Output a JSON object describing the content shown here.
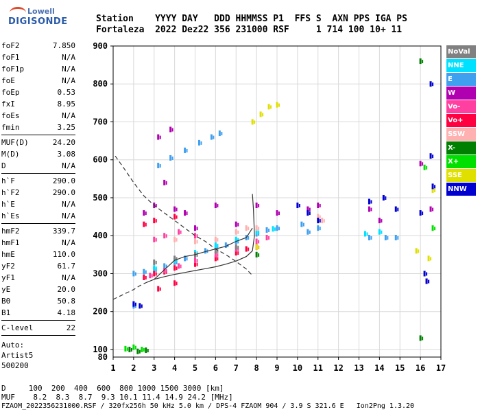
{
  "logo": {
    "line1": "Lowell",
    "line2": "DIGISONDE"
  },
  "header": {
    "labels": "Station    YYYY DAY   DDD HHMMSS P1  FFS S  AXN PPS IGA PS",
    "values": "Fortaleza  2022 Dez22 356 231000 RSF     1 714 100 10+ 11"
  },
  "params": {
    "group1": [
      {
        "k": "foF2",
        "v": "7.850"
      },
      {
        "k": "foF1",
        "v": "N/A"
      },
      {
        "k": "foF1p",
        "v": "N/A"
      },
      {
        "k": "foE",
        "v": "N/A"
      },
      {
        "k": "foEp",
        "v": "0.53"
      },
      {
        "k": "fxI",
        "v": "8.95"
      },
      {
        "k": "foEs",
        "v": "N/A"
      },
      {
        "k": "fmin",
        "v": "3.25"
      }
    ],
    "group2": [
      {
        "k": "MUF(D)",
        "v": "24.20"
      },
      {
        "k": "M(D)",
        "v": "3.08"
      },
      {
        "k": "D",
        "v": "N/A"
      }
    ],
    "group3": [
      {
        "k": "h`F",
        "v": "290.0"
      },
      {
        "k": "h`F2",
        "v": "290.0"
      },
      {
        "k": "h`E",
        "v": "N/A"
      },
      {
        "k": "h`Es",
        "v": "N/A"
      }
    ],
    "group4": [
      {
        "k": "hmF2",
        "v": "339.7"
      },
      {
        "k": "hmF1",
        "v": "N/A"
      },
      {
        "k": "hmE",
        "v": "110.0"
      },
      {
        "k": "yF2",
        "v": "61.7"
      },
      {
        "k": "yF1",
        "v": "N/A"
      },
      {
        "k": "yE",
        "v": "20.0"
      },
      {
        "k": "B0",
        "v": "50.8"
      },
      {
        "k": "B1",
        "v": "4.18"
      }
    ],
    "group5": [
      {
        "k": "C-level",
        "v": "22"
      }
    ],
    "auto": [
      "Auto:",
      "Artist5",
      "500200"
    ]
  },
  "legend": [
    {
      "label": "NoVal",
      "color": "#808080"
    },
    {
      "label": "NNE",
      "color": "#00e0ff"
    },
    {
      "label": "E",
      "color": "#40a0f0"
    },
    {
      "label": "W",
      "color": "#b000b0"
    },
    {
      "label": "Vo-",
      "color": "#ff40a0"
    },
    {
      "label": "Vo+",
      "color": "#ff0040"
    },
    {
      "label": "SSW",
      "color": "#ffb0b0"
    },
    {
      "label": "X-",
      "color": "#008000"
    },
    {
      "label": "X+",
      "color": "#00e000"
    },
    {
      "label": "SSE",
      "color": "#e0e000"
    },
    {
      "label": "NNW",
      "color": "#0000d0"
    }
  ],
  "footer": {
    "d_row": "D     100  200  400  600  800 1000 1500 3000 [km]",
    "muf_row": "MUF    8.2  8.3  8.7  9.3 10.1 11.4 14.9 24.2 [MHz]",
    "file_row": "FZAOM_2022356231000.RSF / 320fx256h 50 kHz 5.0 km / DPS-4 FZAOM 904 / 3.9 S 321.6 E   Ion2Png 1.3.20"
  },
  "chart_data": {
    "type": "scatter",
    "xlim": [
      1,
      17
    ],
    "ylim": [
      80,
      900
    ],
    "x_ticks": [
      "1",
      "2",
      "3",
      "4",
      "5",
      "6",
      "7",
      "8",
      "9",
      "10",
      "11",
      "12",
      "13",
      "14",
      "15",
      "16",
      "17"
    ],
    "y_ticks": [
      "100",
      "200",
      "300",
      "400",
      "500",
      "600",
      "700",
      "800",
      "900"
    ],
    "grid": true,
    "series": [
      {
        "color": "#40a0f0",
        "points": [
          [
            2.0,
            300
          ],
          [
            2.5,
            305
          ],
          [
            3,
            310
          ],
          [
            3.5,
            320
          ],
          [
            4,
            330
          ],
          [
            4.5,
            340
          ],
          [
            5,
            350
          ],
          [
            5.5,
            360
          ],
          [
            6,
            370
          ],
          [
            6.5,
            375
          ],
          [
            7,
            385
          ],
          [
            7.5,
            395
          ],
          [
            8,
            405
          ],
          [
            8.5,
            415
          ],
          [
            9,
            420
          ],
          [
            3.2,
            585
          ],
          [
            3.8,
            605
          ],
          [
            4.5,
            625
          ],
          [
            5.2,
            645
          ],
          [
            5.8,
            660
          ],
          [
            6.2,
            670
          ],
          [
            13.5,
            395
          ],
          [
            14.3,
            395
          ],
          [
            14.8,
            395
          ],
          [
            10.2,
            430
          ],
          [
            10.5,
            410
          ],
          [
            11,
            420
          ],
          [
            2.0,
            215
          ]
        ]
      },
      {
        "color": "#00e0ff",
        "points": [
          [
            3,
            315
          ],
          [
            4,
            335
          ],
          [
            5,
            355
          ],
          [
            6,
            375
          ],
          [
            7,
            390
          ],
          [
            8,
            410
          ],
          [
            8.8,
            418
          ],
          [
            13.3,
            405
          ],
          [
            14,
            410
          ]
        ]
      },
      {
        "color": "#ff0040",
        "points": [
          [
            2.5,
            290
          ],
          [
            3,
            300
          ],
          [
            3.5,
            305
          ],
          [
            4,
            315
          ],
          [
            5,
            325
          ],
          [
            6,
            340
          ],
          [
            7,
            355
          ],
          [
            7.5,
            365
          ],
          [
            8,
            370
          ],
          [
            2.5,
            430
          ],
          [
            3,
            440
          ],
          [
            4,
            450
          ],
          [
            3.2,
            260
          ],
          [
            4,
            275
          ]
        ]
      },
      {
        "color": "#ff40a0",
        "points": [
          [
            2.8,
            295
          ],
          [
            3.5,
            308
          ],
          [
            4.2,
            320
          ],
          [
            5,
            335
          ],
          [
            6,
            350
          ],
          [
            7,
            365
          ],
          [
            8,
            385
          ],
          [
            8.5,
            395
          ],
          [
            3,
            390
          ],
          [
            3.5,
            400
          ],
          [
            4.2,
            410
          ],
          [
            5,
            400
          ]
        ]
      },
      {
        "color": "#b000b0",
        "points": [
          [
            2.5,
            460
          ],
          [
            3,
            480
          ],
          [
            3.5,
            540
          ],
          [
            4,
            470
          ],
          [
            4.5,
            460
          ],
          [
            5,
            420
          ],
          [
            6,
            480
          ],
          [
            7,
            430
          ],
          [
            3.2,
            660
          ],
          [
            3.8,
            680
          ],
          [
            8,
            480
          ],
          [
            9,
            460
          ],
          [
            10.5,
            470
          ],
          [
            11,
            480
          ],
          [
            13.5,
            470
          ],
          [
            14,
            440
          ],
          [
            16.5,
            470
          ],
          [
            16.3,
            280
          ],
          [
            16,
            590
          ]
        ]
      },
      {
        "color": "#ffb0b0",
        "points": [
          [
            4,
            390
          ],
          [
            5,
            385
          ],
          [
            6,
            390
          ],
          [
            7,
            410
          ],
          [
            7.5,
            420
          ],
          [
            8,
            420
          ],
          [
            11,
            450
          ],
          [
            11.2,
            440
          ]
        ]
      },
      {
        "color": "#e0e000",
        "points": [
          [
            7.8,
            700
          ],
          [
            8.2,
            720
          ],
          [
            8.6,
            740
          ],
          [
            9,
            745
          ],
          [
            8,
            370
          ],
          [
            16.6,
            520
          ],
          [
            16.4,
            340
          ],
          [
            15.8,
            360
          ]
        ]
      },
      {
        "color": "#0000d0",
        "points": [
          [
            2.0,
            220
          ],
          [
            2.3,
            215
          ],
          [
            10,
            480
          ],
          [
            10.5,
            460
          ],
          [
            11,
            440
          ],
          [
            13.5,
            490
          ],
          [
            14.2,
            500
          ],
          [
            14.8,
            470
          ],
          [
            16.5,
            800
          ],
          [
            16.2,
            300
          ],
          [
            16.6,
            530
          ],
          [
            16,
            460
          ],
          [
            16.5,
            610
          ],
          [
            16.3,
            280
          ]
        ]
      },
      {
        "color": "#008000",
        "points": [
          [
            1.8,
            100
          ],
          [
            2.2,
            95
          ],
          [
            2.6,
            98
          ],
          [
            8,
            350
          ],
          [
            16,
            860
          ],
          [
            16,
            130
          ]
        ]
      },
      {
        "color": "#00e000",
        "points": [
          [
            1.6,
            102
          ],
          [
            2.0,
            106
          ],
          [
            2.4,
            100
          ],
          [
            16.2,
            580
          ],
          [
            16.6,
            420
          ]
        ]
      },
      {
        "color": "#808080",
        "points": [
          [
            3,
            330
          ],
          [
            4,
            340
          ],
          [
            5,
            350
          ],
          [
            6,
            360
          ],
          [
            7,
            370
          ]
        ]
      }
    ],
    "curves": [
      {
        "style": "dashed",
        "points": [
          [
            1.1,
            610
          ],
          [
            1.5,
            580
          ],
          [
            2,
            540
          ],
          [
            2.5,
            505
          ],
          [
            3,
            480
          ],
          [
            3.5,
            460
          ],
          [
            4,
            440
          ],
          [
            4.5,
            420
          ],
          [
            5,
            400
          ],
          [
            5.5,
            385
          ],
          [
            6,
            365
          ],
          [
            6.5,
            350
          ],
          [
            7,
            332
          ],
          [
            7.5,
            312
          ],
          [
            7.8,
            295
          ]
        ]
      },
      {
        "style": "dashed",
        "points": [
          [
            1.0,
            232
          ],
          [
            1.5,
            245
          ],
          [
            2,
            258
          ],
          [
            2.3,
            268
          ],
          [
            2.6,
            276
          ]
        ]
      },
      {
        "style": "solid",
        "points": [
          [
            2.6,
            276
          ],
          [
            3,
            285
          ],
          [
            3.5,
            292
          ],
          [
            4,
            298
          ],
          [
            4.5,
            303
          ],
          [
            5,
            308
          ],
          [
            5.5,
            313
          ],
          [
            6,
            318
          ],
          [
            6.5,
            325
          ],
          [
            7,
            333
          ],
          [
            7.5,
            345
          ],
          [
            7.8,
            360
          ],
          [
            7.9,
            400
          ],
          [
            7.85,
            470
          ],
          [
            7.8,
            510
          ]
        ]
      },
      {
        "style": "solid",
        "points": [
          [
            3.0,
            285
          ],
          [
            3.5,
            310
          ],
          [
            4,
            335
          ],
          [
            4.5,
            345
          ],
          [
            5,
            350
          ],
          [
            5.5,
            358
          ],
          [
            6,
            365
          ],
          [
            6.5,
            372
          ],
          [
            7,
            385
          ],
          [
            7.5,
            395
          ],
          [
            7.8,
            420
          ]
        ]
      }
    ]
  }
}
